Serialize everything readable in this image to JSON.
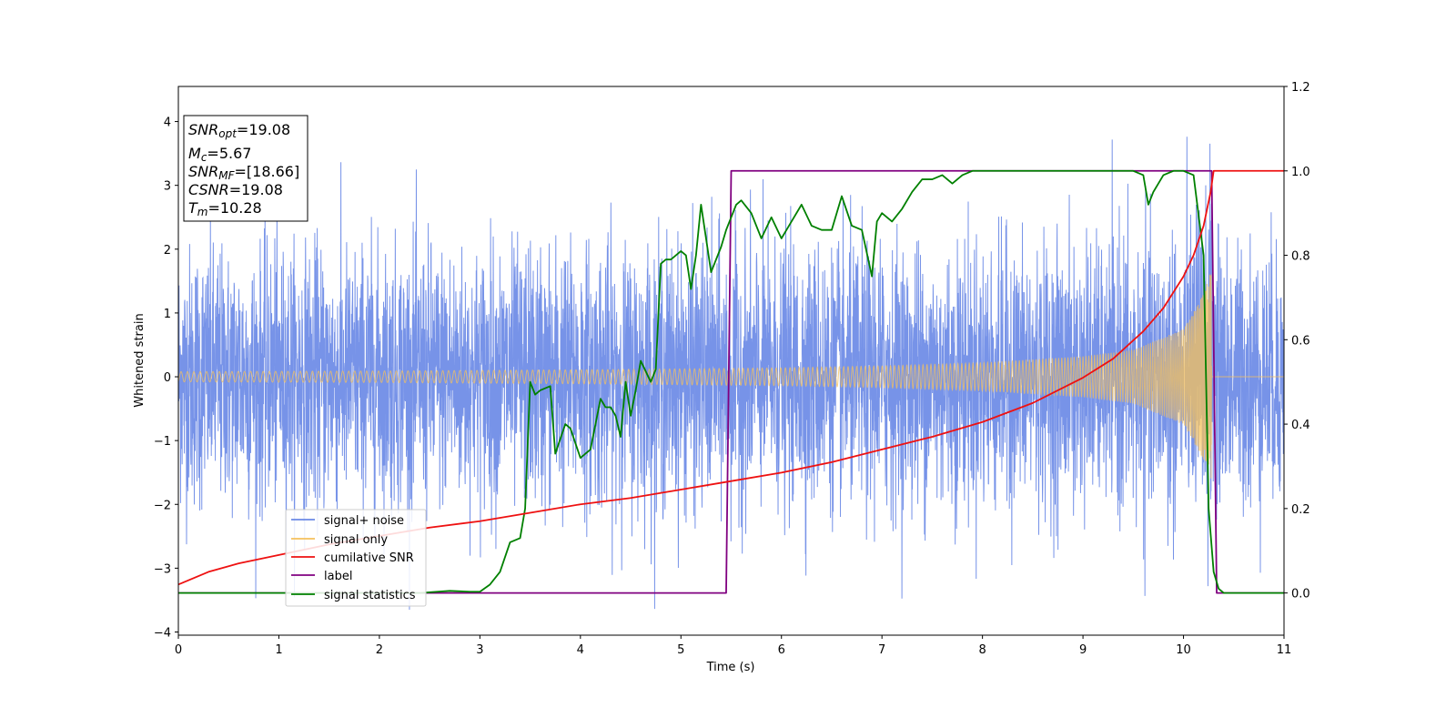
{
  "chart_data": {
    "type": "line",
    "xlabel": "Time (s)",
    "ylabel": "Whitened strain",
    "xlim": [
      0,
      11
    ],
    "ylim_left": [
      -4.05,
      4.55
    ],
    "ylim_right": [
      -0.1,
      1.2
    ],
    "x_ticks": [
      "0",
      "1",
      "2",
      "3",
      "4",
      "5",
      "6",
      "7",
      "8",
      "9",
      "10",
      "11"
    ],
    "y_ticks_left": [
      "−4",
      "−3",
      "−2",
      "−1",
      "0",
      "1",
      "2",
      "3",
      "4"
    ],
    "y_ticks_right": [
      "0.0",
      "0.2",
      "0.4",
      "0.6",
      "0.8",
      "1.0",
      "1.2"
    ],
    "info_box": {
      "snr_opt_base": "SNR",
      "snr_opt_sub": "opt",
      "snr_opt_value": "=19.08",
      "mc_base": "M",
      "mc_sub": "c",
      "mc_value": "=5.67",
      "snr_mf_base": "SNR",
      "snr_mf_sub": "MF",
      "snr_mf_value": "=[18.66]",
      "csnr_base": "CSNR",
      "csnr_value": "=19.08",
      "tm_base": "T",
      "tm_sub": "m",
      "tm_value": "=10.28"
    },
    "legend": [
      {
        "label": "signal+ noise",
        "color": "#6b8ae6"
      },
      {
        "label": "signal only",
        "color": "#f5c15c"
      },
      {
        "label": "cumilative SNR",
        "color": "#ee1111"
      },
      {
        "label": "label",
        "color": "#800080"
      },
      {
        "label": "signal statistics",
        "color": "#008000"
      }
    ],
    "legend_position": "lower-left",
    "series": [
      {
        "name": "signal+ noise",
        "axis": "left",
        "color": "#6b8ae6",
        "kind": "noise",
        "x_range": [
          0,
          11
        ],
        "std": 1.0,
        "peak_approx": 4.15,
        "trough_approx": -3.65
      },
      {
        "name": "signal only",
        "axis": "left",
        "color": "#f5c15c",
        "kind": "chirp-envelope",
        "merger_time": 10.28,
        "envelope_x": [
          0,
          2,
          4,
          6,
          7,
          8,
          9,
          9.5,
          10,
          10.2,
          10.28,
          10.3,
          11
        ],
        "envelope_y": [
          0.08,
          0.09,
          0.11,
          0.14,
          0.17,
          0.22,
          0.32,
          0.42,
          0.75,
          1.3,
          1.7,
          0,
          0
        ]
      },
      {
        "name": "cumilative SNR",
        "axis": "right",
        "color": "#ee1111",
        "x": [
          0,
          0.3,
          0.6,
          1,
          1.5,
          2,
          2.5,
          3,
          3.5,
          4,
          4.5,
          5,
          5.5,
          6,
          6.5,
          7,
          7.5,
          8,
          8.5,
          9,
          9.3,
          9.6,
          9.8,
          10,
          10.1,
          10.2,
          10.27,
          10.3,
          11
        ],
        "y": [
          0.02,
          0.05,
          0.07,
          0.09,
          0.115,
          0.135,
          0.155,
          0.17,
          0.19,
          0.21,
          0.225,
          0.245,
          0.265,
          0.285,
          0.31,
          0.34,
          0.37,
          0.405,
          0.45,
          0.51,
          0.555,
          0.62,
          0.675,
          0.75,
          0.8,
          0.87,
          0.95,
          1.0,
          1.0
        ]
      },
      {
        "name": "label",
        "axis": "right",
        "color": "#800080",
        "x": [
          0,
          5.45,
          5.5,
          10.28,
          10.33,
          11
        ],
        "y": [
          0,
          0,
          1,
          1,
          0,
          0
        ]
      },
      {
        "name": "signal statistics",
        "axis": "right",
        "color": "#008000",
        "x": [
          0,
          0.5,
          1,
          1.5,
          2,
          2.4,
          2.7,
          2.9,
          3.0,
          3.1,
          3.2,
          3.3,
          3.4,
          3.45,
          3.5,
          3.55,
          3.6,
          3.7,
          3.75,
          3.85,
          3.9,
          4.0,
          4.1,
          4.2,
          4.25,
          4.3,
          4.35,
          4.4,
          4.45,
          4.5,
          4.55,
          4.6,
          4.7,
          4.75,
          4.8,
          4.85,
          4.9,
          5.0,
          5.05,
          5.1,
          5.15,
          5.2,
          5.3,
          5.4,
          5.45,
          5.55,
          5.6,
          5.7,
          5.8,
          5.9,
          6.0,
          6.1,
          6.2,
          6.3,
          6.4,
          6.5,
          6.6,
          6.7,
          6.8,
          6.9,
          6.95,
          7.0,
          7.1,
          7.2,
          7.3,
          7.4,
          7.5,
          7.6,
          7.7,
          7.8,
          7.9,
          8.0,
          8.2,
          8.5,
          9.0,
          9.2,
          9.5,
          9.6,
          9.65,
          9.7,
          9.8,
          9.9,
          10.0,
          10.1,
          10.2,
          10.25,
          10.3,
          10.35,
          10.4,
          10.5,
          11
        ],
        "y": [
          0.0,
          0.0,
          0.0,
          0.0,
          0.0,
          0.0,
          0.005,
          0.003,
          0.003,
          0.02,
          0.05,
          0.12,
          0.13,
          0.2,
          0.5,
          0.47,
          0.48,
          0.49,
          0.33,
          0.4,
          0.39,
          0.32,
          0.34,
          0.46,
          0.44,
          0.44,
          0.42,
          0.37,
          0.5,
          0.42,
          0.48,
          0.55,
          0.5,
          0.53,
          0.78,
          0.79,
          0.79,
          0.81,
          0.8,
          0.72,
          0.8,
          0.92,
          0.76,
          0.82,
          0.86,
          0.92,
          0.93,
          0.9,
          0.84,
          0.89,
          0.84,
          0.88,
          0.92,
          0.87,
          0.86,
          0.86,
          0.94,
          0.87,
          0.86,
          0.75,
          0.88,
          0.9,
          0.88,
          0.91,
          0.95,
          0.98,
          0.98,
          0.99,
          0.97,
          0.99,
          1.0,
          1.0,
          1.0,
          1.0,
          1.0,
          1.0,
          1.0,
          0.99,
          0.92,
          0.95,
          0.99,
          1.0,
          1.0,
          0.99,
          0.8,
          0.2,
          0.05,
          0.01,
          0.0,
          0.0,
          0.0
        ]
      }
    ]
  }
}
